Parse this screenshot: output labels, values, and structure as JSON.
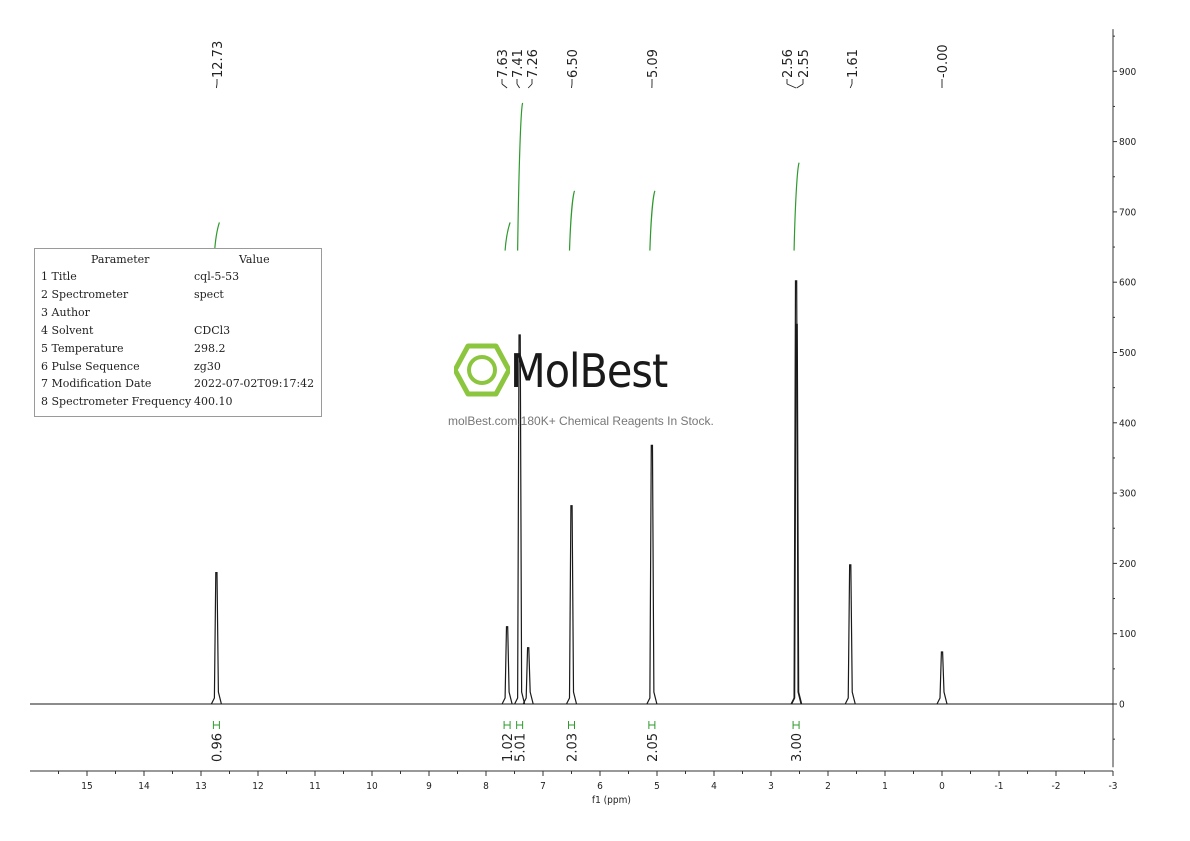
{
  "chart_data": {
    "type": "line",
    "xlabel": "f1 (ppm)",
    "x_range": [
      16,
      -3
    ],
    "y_range": [
      -90,
      960
    ],
    "x_ticks": [
      "15",
      "14",
      "13",
      "12",
      "11",
      "10",
      "9",
      "8",
      "7",
      "6",
      "5",
      "4",
      "3",
      "2",
      "1",
      "0",
      "-1",
      "-2",
      "-3"
    ],
    "y_ticks": [
      "0",
      "100",
      "200",
      "300",
      "400",
      "500",
      "600",
      "700",
      "800",
      "900"
    ],
    "series": [
      {
        "peaks": [
          {
            "ppm": 12.73,
            "height": 187
          },
          {
            "ppm": 7.63,
            "height": 110
          },
          {
            "ppm": 7.41,
            "height": 525
          },
          {
            "ppm": 7.26,
            "height": 80
          },
          {
            "ppm": 6.5,
            "height": 282
          },
          {
            "ppm": 5.09,
            "height": 368
          },
          {
            "ppm": 2.56,
            "height": 602
          },
          {
            "ppm": 2.55,
            "height": 540
          },
          {
            "ppm": 1.61,
            "height": 198
          },
          {
            "ppm": 0.0,
            "height": 74
          }
        ]
      }
    ],
    "peak_labels": [
      {
        "text": "12.73",
        "ppm": 12.73
      },
      {
        "text": "7.63",
        "ppm": 7.63
      },
      {
        "text": "7.41",
        "ppm": 7.41
      },
      {
        "text": "7.26",
        "ppm": 7.26
      },
      {
        "text": "6.50",
        "ppm": 6.5
      },
      {
        "text": "5.09",
        "ppm": 5.09
      },
      {
        "text": "2.56",
        "ppm": 2.56
      },
      {
        "text": "2.55",
        "ppm": 2.55
      },
      {
        "text": "1.61",
        "ppm": 1.61
      },
      {
        "text": "-0.00",
        "ppm": 0.0
      }
    ],
    "integrals": [
      {
        "ppm": 12.73,
        "value": "0.96",
        "low": 640,
        "high": 685
      },
      {
        "ppm": 7.63,
        "value": "1.02",
        "low": 645,
        "high": 685
      },
      {
        "ppm": 7.41,
        "value": "5.01",
        "low": 645,
        "high": 855
      },
      {
        "ppm": 6.5,
        "value": "2.03",
        "low": 645,
        "high": 730
      },
      {
        "ppm": 5.09,
        "value": "2.05",
        "low": 645,
        "high": 730
      },
      {
        "ppm": 2.56,
        "value": "3.00",
        "low": 645,
        "high": 770
      }
    ],
    "colors": {
      "spectrum": "#1a1a1a",
      "integral": "#2e9a2e",
      "axis": "#333333"
    }
  },
  "parameters": {
    "header_param": "Parameter",
    "header_value": "Value",
    "rows": [
      {
        "key": "1 Title",
        "value": "cql-5-53"
      },
      {
        "key": "2 Spectrometer",
        "value": "spect"
      },
      {
        "key": "3 Author",
        "value": ""
      },
      {
        "key": "4 Solvent",
        "value": "CDCl3"
      },
      {
        "key": "5 Temperature",
        "value": "298.2"
      },
      {
        "key": "6 Pulse Sequence",
        "value": "zg30"
      },
      {
        "key": "7 Modification Date",
        "value": "2022-07-02T09:17:42"
      },
      {
        "key": "8 Spectrometer Frequency",
        "value": "400.10"
      }
    ]
  },
  "watermark": {
    "name": "MolBest",
    "tagline": "molBest.com,180K+ Chemical Reagents In Stock.",
    "logo_icon": "benzene-hexagon-icon",
    "brand_color": "#8cc63f"
  }
}
